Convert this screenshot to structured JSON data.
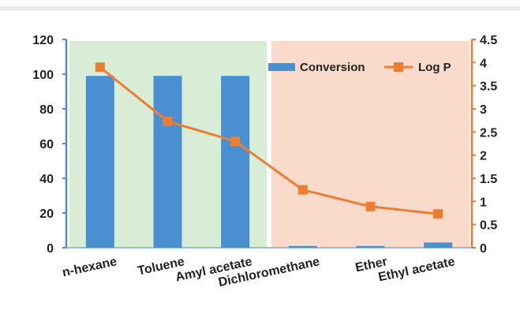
{
  "chart_data": {
    "type": "bar",
    "categories": [
      "n-hexane",
      "Toluene",
      "Amyl acetate",
      "Dichloromethane",
      "Ether",
      "Ethyl acetate"
    ],
    "series": [
      {
        "name": "Conversion",
        "kind": "bar",
        "axis": "left",
        "color": "#4a90d0",
        "values": [
          99,
          99,
          99,
          1,
          1,
          3
        ]
      },
      {
        "name": "Log P",
        "kind": "line",
        "axis": "right",
        "color": "#ed7d31",
        "marker": "square",
        "values": [
          3.9,
          2.73,
          2.3,
          1.25,
          0.89,
          0.73
        ]
      }
    ],
    "ylim": [
      0,
      120
    ],
    "y2lim": [
      0,
      4.5
    ],
    "yticks": [
      "0",
      "20",
      "40",
      "60",
      "80",
      "100",
      "120"
    ],
    "y2ticks": [
      "0",
      "0.5",
      "1",
      "1.5",
      "2",
      "2.5",
      "3",
      "3.5",
      "4",
      "4.5"
    ],
    "legend": [
      "Conversion",
      "Log P"
    ],
    "legend_position": "top-right",
    "background_regions": [
      {
        "from": "n-hexane",
        "to": "Amyl acetate",
        "color": "#d9ecd5"
      },
      {
        "from": "Dichloromethane",
        "to": "Ethyl acetate",
        "color": "#fadbcb"
      }
    ],
    "grid": false
  }
}
